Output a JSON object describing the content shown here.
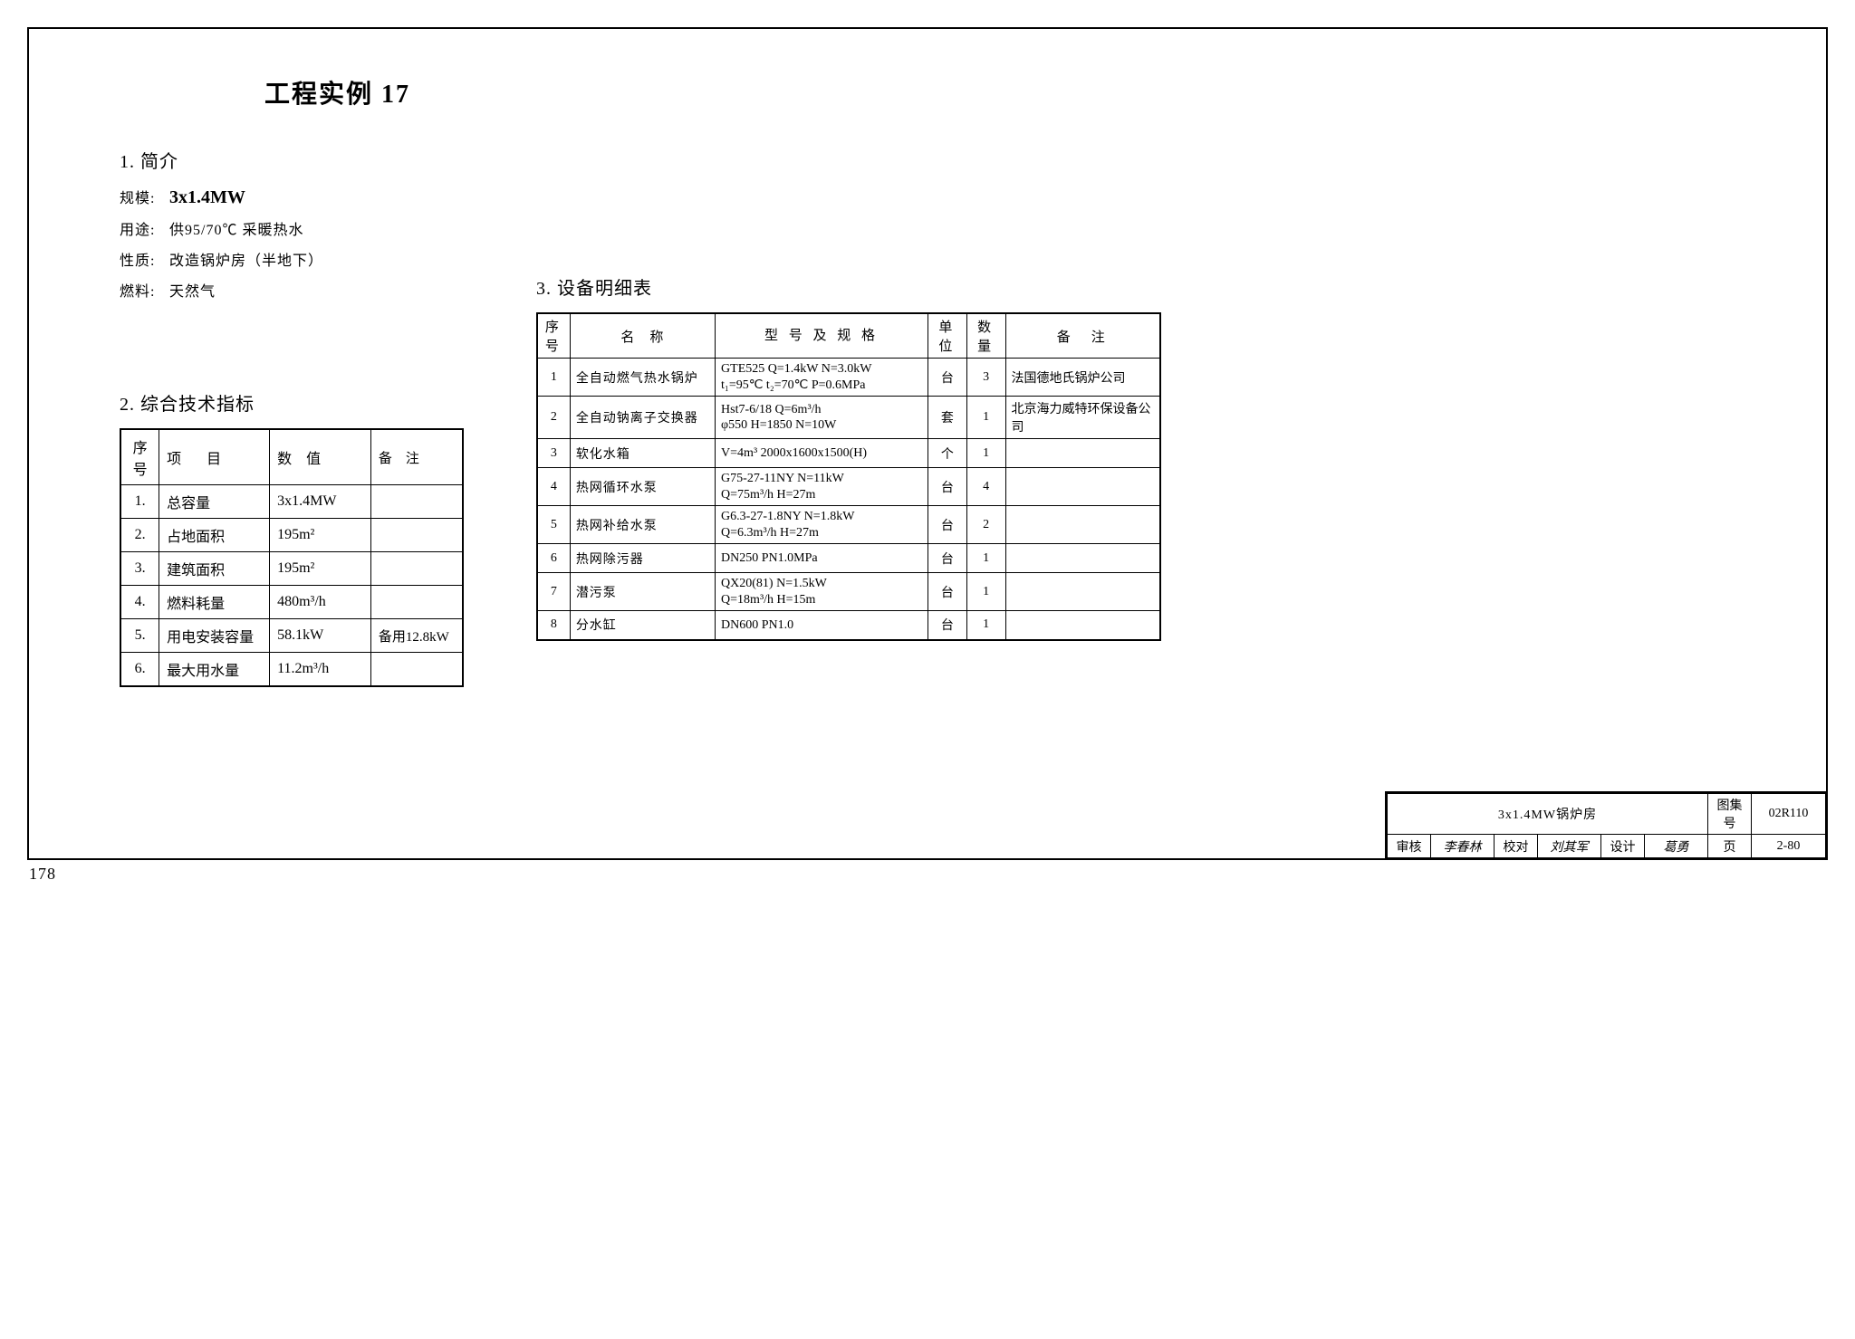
{
  "title": "工程实例 17",
  "page_number": "178",
  "intro": {
    "heading": "1. 简介",
    "lines": [
      {
        "label": "规模:",
        "value": "3x1.4MW",
        "big": true
      },
      {
        "label": "用途:",
        "value": "供95/70℃ 采暖热水"
      },
      {
        "label": "性质:",
        "value": "改造锅炉房（半地下）"
      },
      {
        "label": "燃料:",
        "value": "天然气"
      }
    ]
  },
  "tech": {
    "heading": "2. 综合技术指标",
    "headers": {
      "idx": "序号",
      "item": "项　目",
      "value": "数　值",
      "note": "备　注"
    },
    "rows": [
      {
        "idx": "1.",
        "item": "总容量",
        "value": "3x1.4MW",
        "note": ""
      },
      {
        "idx": "2.",
        "item": "占地面积",
        "value": "195m²",
        "note": ""
      },
      {
        "idx": "3.",
        "item": "建筑面积",
        "value": "195m²",
        "note": ""
      },
      {
        "idx": "4.",
        "item": "燃料耗量",
        "value": "480m³/h",
        "note": ""
      },
      {
        "idx": "5.",
        "item": "用电安装容量",
        "value": "58.1kW",
        "note": "备用12.8kW"
      },
      {
        "idx": "6.",
        "item": "最大用水量",
        "value": "11.2m³/h",
        "note": ""
      }
    ]
  },
  "equip": {
    "heading": "3. 设备明细表",
    "headers": {
      "idx": "序号",
      "name": "名　称",
      "spec": "型 号 及 规 格",
      "unit": "单位",
      "qty": "数量",
      "note": "备　注"
    },
    "rows": [
      {
        "idx": "1",
        "name": "全自动燃气热水锅炉",
        "spec": "GTE525 Q=1.4kW N=3.0kW\nt₁=95℃ t₂=70℃ P=0.6MPa",
        "unit": "台",
        "qty": "3",
        "note": "法国德地氏锅炉公司"
      },
      {
        "idx": "2",
        "name": "全自动钠离子交换器",
        "spec": "Hst7-6/18 Q=6m³/h\nφ550  H=1850  N=10W",
        "unit": "套",
        "qty": "1",
        "note": "北京海力威特环保设备公司"
      },
      {
        "idx": "3",
        "name": "软化水箱",
        "spec": "V=4m³  2000x1600x1500(H)",
        "unit": "个",
        "qty": "1",
        "note": ""
      },
      {
        "idx": "4",
        "name": "热网循环水泵",
        "spec": "G75-27-11NY  N=11kW\nQ=75m³/h  H=27m",
        "unit": "台",
        "qty": "4",
        "note": ""
      },
      {
        "idx": "5",
        "name": "热网补给水泵",
        "spec": "G6.3-27-1.8NY  N=1.8kW\nQ=6.3m³/h  H=27m",
        "unit": "台",
        "qty": "2",
        "note": ""
      },
      {
        "idx": "6",
        "name": "热网除污器",
        "spec": "DN250  PN1.0MPa",
        "unit": "台",
        "qty": "1",
        "note": ""
      },
      {
        "idx": "7",
        "name": "潜污泵",
        "spec": "QX20(81)  N=1.5kW\nQ=18m³/h  H=15m",
        "unit": "台",
        "qty": "1",
        "note": ""
      },
      {
        "idx": "8",
        "name": "分水缸",
        "spec": "DN600 PN1.0",
        "unit": "台",
        "qty": "1",
        "note": ""
      }
    ]
  },
  "title_block": {
    "main": "3x1.4MW锅炉房",
    "set_label": "图集号",
    "set_value": "02R110",
    "review_label": "审核",
    "review_sig": "李春林",
    "check_label": "校对",
    "check_sig": "刘其军",
    "design_label": "设计",
    "design_sig": "葛勇",
    "page_label": "页",
    "page_value": "2-80"
  }
}
